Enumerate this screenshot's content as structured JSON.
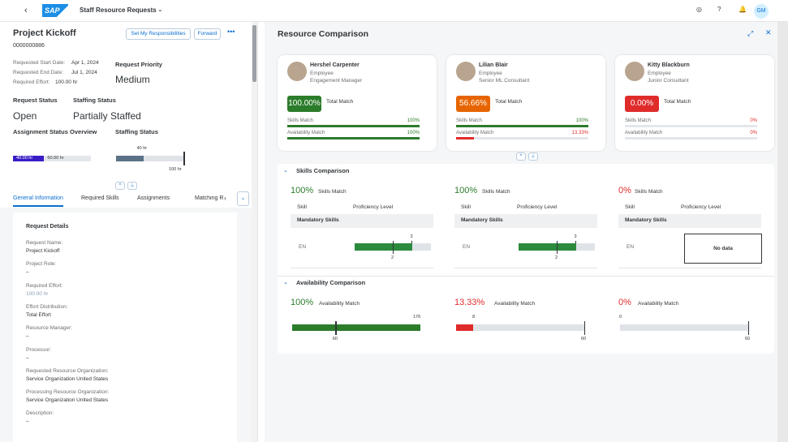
{
  "shell": {
    "title": "Staff Resource Requests",
    "avatar": "GM"
  },
  "header": {
    "title": "Project Kickoff",
    "id": "0000000886",
    "actions": [
      "Set My Responsibilities",
      "Forward"
    ],
    "dates": [
      {
        "label": "Requested Start Date:",
        "value": "Apr 1, 2024"
      },
      {
        "label": "Requested End Date:",
        "value": "Jul 1, 2024"
      },
      {
        "label": "Required Effort:",
        "value": "100.00 hr"
      }
    ],
    "priority": {
      "label": "Request Priority",
      "value": "Medium"
    },
    "request_status": {
      "label": "Request Status",
      "value": "Open"
    },
    "staffing_status": {
      "label": "Staffing Status",
      "value": "Partially Staffed"
    },
    "assignment_overview": {
      "label": "Assignment Status Overview",
      "segments": [
        {
          "value": 40,
          "label": "40.00 hr",
          "color": "#3a1cc6"
        },
        {
          "value": 60,
          "label": "60.00 hr",
          "color": "#e3e7ec"
        }
      ]
    },
    "staffing_chart": {
      "label": "Staffing Status",
      "value": 40,
      "target": 100,
      "value_label": "40 hr",
      "target_label": "100 hr",
      "color": "#5b7186"
    }
  },
  "tabs": [
    "General Information",
    "Required Skills",
    "Assignments",
    "Matching R"
  ],
  "details": {
    "title": "Request Details",
    "fields": [
      {
        "label": "Request Name:",
        "value": "Project Kickoff"
      },
      {
        "label": "Project Role:",
        "value": "–"
      },
      {
        "label": "Required Effort:",
        "value": "100.00 hr"
      },
      {
        "label": "Effort Distribution:",
        "value": "Total Effort"
      },
      {
        "label": "Resource Manager:",
        "value": "–"
      },
      {
        "label": "Processor:",
        "value": "–"
      },
      {
        "label": "Requested Resource Organization:",
        "value": "Service Organization United States"
      },
      {
        "label": "Processing Resource Organization:",
        "value": "Service Organization United States"
      },
      {
        "label": "Description:",
        "value": "–"
      }
    ]
  },
  "comparison": {
    "title": "Resource Comparison",
    "candidates": [
      {
        "name": "Hershel Carpenter",
        "type": "Employee",
        "role": "Engagement Manager",
        "total": {
          "value": 100,
          "label": "100.00%",
          "caption": "Total Match",
          "color": "#2b7c2b"
        },
        "skills": {
          "label": "Skills Match",
          "value": 100,
          "value_label": "100%",
          "color": "#2b7c2b"
        },
        "availability": {
          "label": "Availability Match",
          "value": 100,
          "value_label": "100%",
          "color": "#2b7c2b"
        }
      },
      {
        "name": "Lilian Blair",
        "type": "Employee",
        "role": "Senior ML Consultant",
        "total": {
          "value": 56.66,
          "label": "56.66%",
          "caption": "Total Match",
          "color": "#e76500"
        },
        "skills": {
          "label": "Skills Match",
          "value": 100,
          "value_label": "100%",
          "color": "#2b7c2b"
        },
        "availability": {
          "label": "Availability Match",
          "value": 13.33,
          "value_label": "13.33%",
          "color": "#e02b2b"
        }
      },
      {
        "name": "Kitty Blackburn",
        "type": "Employee",
        "role": "Junior Consultant",
        "total": {
          "value": 0,
          "label": "0.00%",
          "caption": "Total Match",
          "color": "#e02b2b"
        },
        "skills": {
          "label": "Skills Match",
          "value": 0,
          "value_label": "0%",
          "color": "#e02b2b"
        },
        "availability": {
          "label": "Availability Match",
          "value": 0,
          "value_label": "0%",
          "color": "#e02b2b"
        }
      }
    ]
  },
  "skills_section": {
    "title": "Skills Comparison",
    "caption": "Skills Match",
    "columns": [
      "Skill",
      "Proficiency Level"
    ],
    "group": "Mandatory Skills",
    "xlim": [
      0,
      4
    ],
    "items": [
      {
        "match": "100%",
        "match_color": "#2b7c2b",
        "skill": "EN",
        "value": 3,
        "required": 2
      },
      {
        "match": "100%",
        "match_color": "#2b7c2b",
        "skill": "EN",
        "value": 3,
        "required": 2
      },
      {
        "match": "0%",
        "match_color": "#e02b2b",
        "skill": "EN",
        "no_data": "No data"
      }
    ]
  },
  "availability_section": {
    "title": "Availability Comparison",
    "caption": "Availability Match",
    "items": [
      {
        "match": "100%",
        "color": "#2b7c2b",
        "value": 176,
        "required": 60
      },
      {
        "match": "13.33%",
        "color": "#e02b2b",
        "value": 8,
        "required": 60
      },
      {
        "match": "0%",
        "color": "#e02b2b",
        "value": 0,
        "required": 60
      }
    ]
  }
}
